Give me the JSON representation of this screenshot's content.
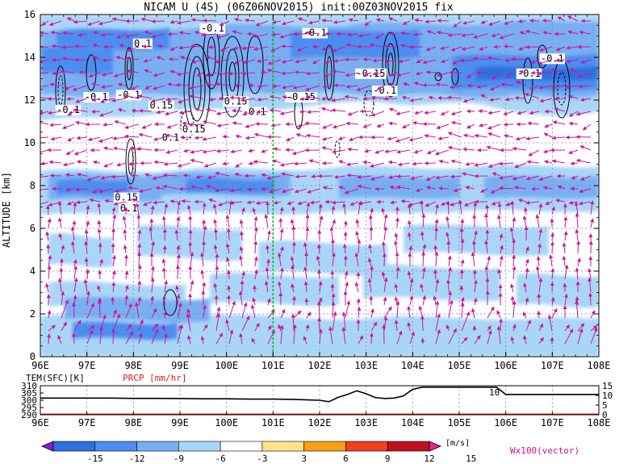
{
  "chart_data": [
    {
      "type": "heatmap",
      "title": "NICAM U (4S) (06Z06NOV2015) init:00Z03NOV2015 fix",
      "xlabel": "",
      "ylabel": "ALTITUDE [km]",
      "x_ticks": [
        "96E",
        "97E",
        "98E",
        "99E",
        "100E",
        "101E",
        "102E",
        "103E",
        "104E",
        "105E",
        "106E",
        "107E",
        "108E"
      ],
      "y_ticks": [
        "0",
        "2",
        "4",
        "6",
        "8",
        "10",
        "12",
        "14",
        "16"
      ],
      "xlim": [
        96,
        108
      ],
      "ylim": [
        0,
        16
      ],
      "grid": true,
      "contour_labels": [
        {
          "text": "-0.1",
          "lon": 96.6,
          "alt": 11.4
        },
        {
          "text": "-0.1",
          "lon": 97.2,
          "alt": 12.0
        },
        {
          "text": "-0.1",
          "lon": 97.9,
          "alt": 12.1
        },
        {
          "text": "0.1",
          "lon": 98.2,
          "alt": 14.5
        },
        {
          "text": "-0.1",
          "lon": 99.7,
          "alt": 15.2
        },
        {
          "text": "0.15",
          "lon": 98.6,
          "alt": 11.6
        },
        {
          "text": "0.15",
          "lon": 99.3,
          "alt": 10.5
        },
        {
          "text": "0.1",
          "lon": 98.8,
          "alt": 10.1
        },
        {
          "text": "0.15",
          "lon": 100.2,
          "alt": 11.8
        },
        {
          "text": "-0.1",
          "lon": 100.6,
          "alt": 11.3
        },
        {
          "text": "-0.1",
          "lon": 101.9,
          "alt": 15.0
        },
        {
          "text": "-0.15",
          "lon": 101.6,
          "alt": 12.0
        },
        {
          "text": "-0.15",
          "lon": 103.1,
          "alt": 13.1
        },
        {
          "text": "-0.1",
          "lon": 103.4,
          "alt": 12.3
        },
        {
          "text": "-0.1",
          "lon": 106.5,
          "alt": 13.1
        },
        {
          "text": "-0.1",
          "lon": 107.0,
          "alt": 13.8
        },
        {
          "text": "0.15",
          "lon": 97.85,
          "alt": 7.3
        },
        {
          "text": "0.1",
          "lon": 97.9,
          "alt": 6.8
        }
      ],
      "meridian_line": {
        "lon": 101,
        "color": "#00b000"
      }
    },
    {
      "type": "line",
      "xlim": [
        96,
        108
      ],
      "x_ticks": [
        "96E",
        "97E",
        "98E",
        "99E",
        "100E",
        "101E",
        "102E",
        "103E",
        "104E",
        "105E",
        "106E",
        "107E",
        "108E"
      ],
      "left_axis": {
        "label": "TEM(SFC)[K]",
        "ticks": [
          "290",
          "295",
          "300",
          "305",
          "310"
        ],
        "range": [
          290,
          310
        ]
      },
      "right_axis": {
        "label": "PRCP [mm/hr]",
        "ticks": [
          "0",
          "5",
          "10",
          "15"
        ],
        "range": [
          0,
          15
        ]
      },
      "series": [
        {
          "lon": [
            96,
            96.5,
            97,
            97.5,
            98,
            98.5,
            99,
            99.5,
            100,
            100.5,
            101,
            101.5,
            102,
            102.2,
            102.4,
            102.6,
            102.8,
            103,
            103.2,
            103.4,
            103.6,
            103.8,
            104,
            104.2,
            104.6,
            105,
            105.4,
            105.8,
            106,
            106.4,
            107,
            107.5,
            108
          ],
          "values": [
            301.5,
            301.5,
            301.5,
            301.5,
            301.3,
            301.3,
            301.2,
            301.0,
            301.0,
            300.8,
            300.8,
            300.5,
            300.0,
            299.0,
            302.0,
            304.0,
            306.5,
            304.5,
            301.8,
            301.2,
            301.5,
            303.0,
            307.5,
            309.0,
            309.0,
            309.0,
            309.0,
            309.0,
            304.0,
            304.0,
            304.0,
            304.0,
            304.0
          ]
        },
        {
          "name": "PRCP",
          "lon": [
            96,
            108
          ],
          "values": [
            0,
            0
          ]
        }
      ],
      "annotation": "10"
    },
    {
      "type": "table",
      "colorbar": {
        "ticks": [
          "-15",
          "-12",
          "-9",
          "-6",
          "-3",
          "3",
          "6",
          "9",
          "12",
          "15"
        ],
        "unit": "[m/s]",
        "colors": [
          "#8a1adf",
          "#2e6fe0",
          "#4c8df0",
          "#78aff3",
          "#a9d6f7",
          "#ffffff",
          "#fde28a",
          "#f7a014",
          "#f04020",
          "#c0101e",
          "#e8209a"
        ],
        "vector_label": "Wx100(vector)"
      }
    }
  ]
}
